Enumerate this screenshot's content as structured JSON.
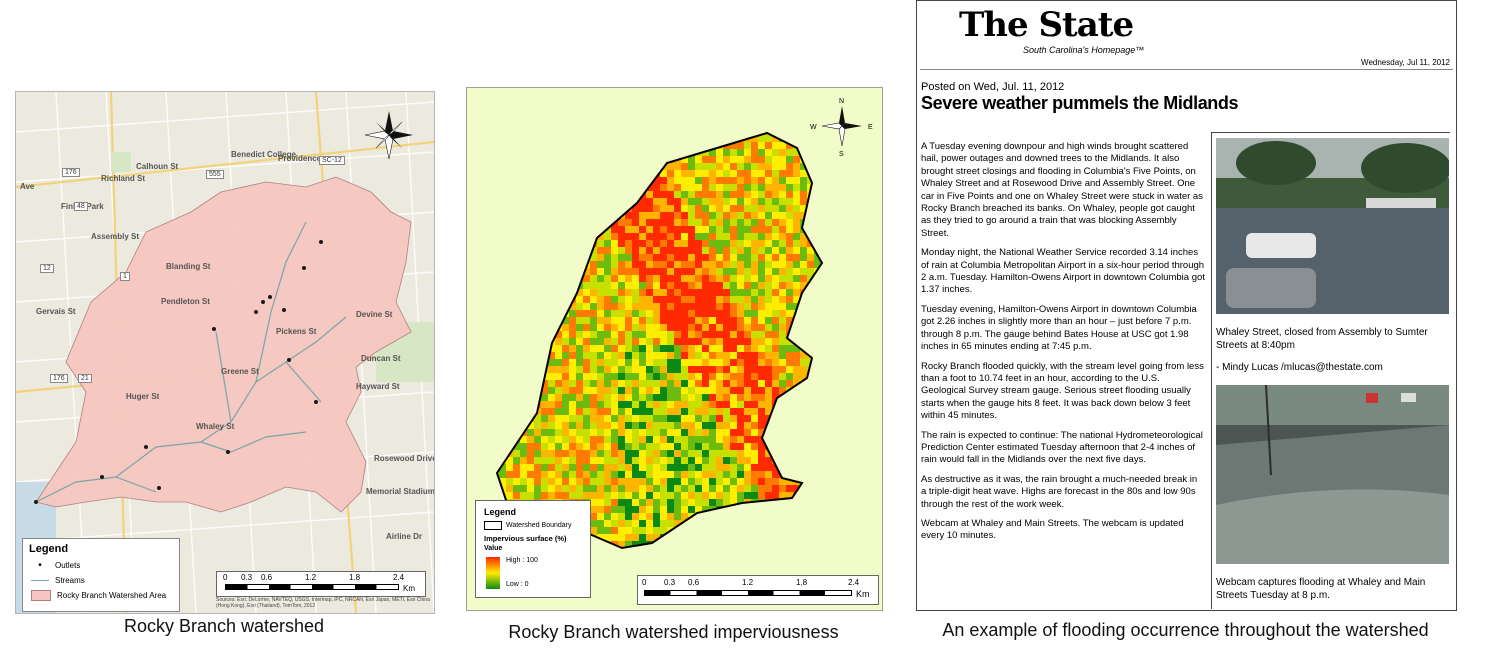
{
  "captions": {
    "map1": "Rocky Branch watershed",
    "map2": "Rocky Branch watershed imperviousness",
    "news": "An example of flooding occurrence throughout the watershed"
  },
  "map1": {
    "place_labels": [
      "Benedict College",
      "Providence",
      "Finlay Park",
      "Pendleton St",
      "Gervais St",
      "Richland St",
      "Calhoun St",
      "Blanding St",
      "Assembly St",
      "Pickens St",
      "Devine St",
      "Duncan St",
      "Hayward St",
      "Rosewood Drive",
      "Memorial Stadium",
      "Airline Dr",
      "Whaley St",
      "Huger St",
      "Greene St",
      "Ave"
    ],
    "road_numbers": [
      "176",
      "555",
      "48",
      "12",
      "1",
      "176",
      "21",
      "SC-12"
    ],
    "legend": {
      "title": "Legend",
      "items": [
        "Outlets",
        "Streams",
        "Rocky Branch Watershed Area"
      ]
    },
    "scale": {
      "ticks": [
        "0",
        "0.3",
        "0.6",
        "1.2",
        "1.8",
        "2.4"
      ],
      "unit": "Km"
    },
    "attribution": "Sources: Esri, DeLorme, NAVTEQ, USGS, Intermap, iPC, NRCAN, Esri Japan, METI, Esri China (Hong Kong), Esri (Thailand), TomTom, 2012",
    "colors": {
      "watershed": "#f5c6c0",
      "stream": "#7aa5a8",
      "outlet": "#1a1a1a"
    }
  },
  "map2": {
    "legend": {
      "title": "Legend",
      "boundary": "Watershed Boundary",
      "layer": "Impervious surface (%)",
      "value_label": "Value",
      "high": "High : 100",
      "low": "Low : 0"
    },
    "scale": {
      "ticks": [
        "0",
        "0.3",
        "0.6",
        "1.2",
        "1.8",
        "2.4"
      ],
      "unit": "Km"
    },
    "compass": {
      "n": "N",
      "s": "S",
      "e": "E",
      "w": "W"
    },
    "colors": {
      "high": "#ff2a00",
      "mid": "#ffee00",
      "low": "#0a8a12"
    }
  },
  "news": {
    "masthead": "The State",
    "masthead_sub": "South Carolina's Homepage™",
    "date": "Wednesday, Jul 11, 2012",
    "posted": "Posted on Wed, Jul. 11, 2012",
    "headline": "Severe weather pummels the Midlands",
    "paragraphs": [
      "A Tuesday evening downpour and high winds brought scattered hail, power outages and downed trees to the Midlands. It also brought street closings and flooding in Columbia's Five Points, on Whaley Street and at Rosewood Drive and Assembly Street. One car in Five Points and one on Whaley Street were stuck in water as Rocky Branch breached its banks. On Whaley, people got caught as they tried to go around a train that was blocking Assembly Street.",
      "Monday night, the National Weather Service recorded 3.14 inches of rain at Columbia Metropolitan Airport in a six-hour period through 2 a.m. Tuesday. Hamilton-Owens Airport in downtown Columbia got 1.37 inches.",
      "Tuesday evening, Hamilton-Owens Airport in downtown Columbia got 2.26 inches in slightly more than an hour – just before 7 p.m. through 8 p.m. The gauge behind Bates House at USC got 1.98 inches in 65 minutes ending at 7:45 p.m.",
      "Rocky Branch flooded quickly, with the stream level going from less than a foot to 10.74 feet in an hour, according to the U.S. Geological Survey stream gauge. Serious street flooding usually starts when the gauge hits 8 feet. It was back down below 3 feet within 45 minutes.",
      "The rain is expected to continue: The national Hydrometeorological Prediction Center estimated Tuesday afternoon that 2-4 inches of rain would fall in the Midlands over the next five days.",
      "As destructive as it was, the rain brought a much-needed break in a triple-digit heat wave. Highs are forecast in the 80s and low 90s through the rest of the work week.",
      "Webcam at Whaley and Main Streets. The webcam is updated every 10 minutes."
    ],
    "photo1_caption": "Whaley Street, closed from Assembly to Sumter Streets at 8:40pm",
    "photo1_credit": "- Mindy Lucas /mlucas@thestate.com",
    "photo2_caption": "Webcam captures flooding at Whaley and Main Streets Tuesday at 8 p.m."
  }
}
